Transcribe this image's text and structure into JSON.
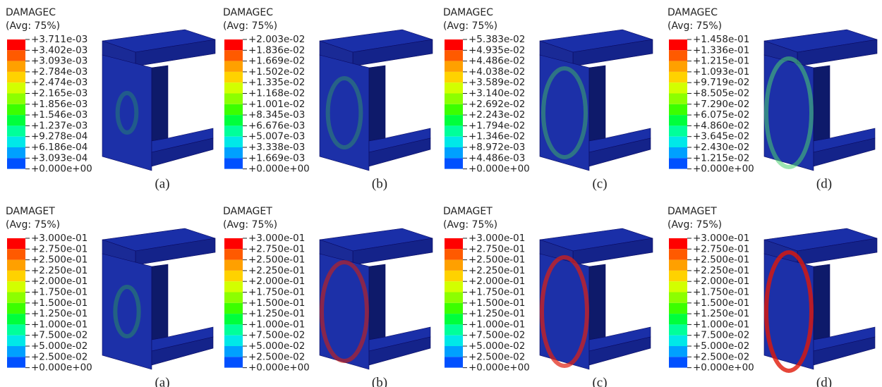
{
  "panels": [
    {
      "variable": "DAMAGEC",
      "avg": "(Avg: 75%)",
      "caption": "(a)",
      "levels": [
        "+3.711e-03",
        "+3.402e-03",
        "+3.093e-03",
        "+2.784e-03",
        "+2.474e-03",
        "+2.165e-03",
        "+1.856e-03",
        "+1.546e-03",
        "+1.237e-03",
        "+9.278e-04",
        "+6.186e-04",
        "+3.093e-04",
        "+0.000e+00"
      ]
    },
    {
      "variable": "DAMAGEC",
      "avg": "(Avg: 75%)",
      "caption": "(b)",
      "levels": [
        "+2.003e-02",
        "+1.836e-02",
        "+1.669e-02",
        "+1.502e-02",
        "+1.335e-02",
        "+1.168e-02",
        "+1.001e-02",
        "+8.345e-03",
        "+6.676e-03",
        "+5.007e-03",
        "+3.338e-03",
        "+1.669e-03",
        "+0.000e+00"
      ]
    },
    {
      "variable": "DAMAGEC",
      "avg": "(Avg: 75%)",
      "caption": "(c)",
      "levels": [
        "+5.383e-02",
        "+4.935e-02",
        "+4.486e-02",
        "+4.038e-02",
        "+3.589e-02",
        "+3.140e-02",
        "+2.692e-02",
        "+2.243e-02",
        "+1.794e-02",
        "+1.346e-02",
        "+8.972e-03",
        "+4.486e-03",
        "+0.000e+00"
      ]
    },
    {
      "variable": "DAMAGEC",
      "avg": "(Avg: 75%)",
      "caption": "(d)",
      "levels": [
        "+1.458e-01",
        "+1.336e-01",
        "+1.215e-01",
        "+1.093e-01",
        "+9.719e-02",
        "+8.505e-02",
        "+7.290e-02",
        "+6.075e-02",
        "+4.860e-02",
        "+3.645e-02",
        "+2.430e-02",
        "+1.215e-02",
        "+0.000e+00"
      ]
    },
    {
      "variable": "DAMAGET",
      "avg": "(Avg: 75%)",
      "caption": "(a)",
      "levels": [
        "+3.000e-01",
        "+2.750e-01",
        "+2.500e-01",
        "+2.250e-01",
        "+2.000e-01",
        "+1.750e-01",
        "+1.500e-01",
        "+1.250e-01",
        "+1.000e-01",
        "+7.500e-02",
        "+5.000e-02",
        "+2.500e-02",
        "+0.000e+00"
      ]
    },
    {
      "variable": "DAMAGET",
      "avg": "(Avg: 75%)",
      "caption": "(b)",
      "levels": [
        "+3.000e-01",
        "+2.750e-01",
        "+2.500e-01",
        "+2.250e-01",
        "+2.000e-01",
        "+1.750e-01",
        "+1.500e-01",
        "+1.250e-01",
        "+1.000e-01",
        "+7.500e-02",
        "+5.000e-02",
        "+2.500e-02",
        "+0.000e+00"
      ]
    },
    {
      "variable": "DAMAGET",
      "avg": "(Avg: 75%)",
      "caption": "(c)",
      "levels": [
        "+3.000e-01",
        "+2.750e-01",
        "+2.500e-01",
        "+2.250e-01",
        "+2.000e-01",
        "+1.750e-01",
        "+1.500e-01",
        "+1.250e-01",
        "+1.000e-01",
        "+7.500e-02",
        "+5.000e-02",
        "+2.500e-02",
        "+0.000e+00"
      ]
    },
    {
      "variable": "DAMAGET",
      "avg": "(Avg: 75%)",
      "caption": "(d)",
      "levels": [
        "+3.000e-01",
        "+2.750e-01",
        "+2.500e-01",
        "+2.250e-01",
        "+2.000e-01",
        "+1.750e-01",
        "+1.500e-01",
        "+1.250e-01",
        "+1.000e-01",
        "+7.500e-02",
        "+5.000e-02",
        "+2.500e-02",
        "+0.000e+00"
      ]
    }
  ]
}
